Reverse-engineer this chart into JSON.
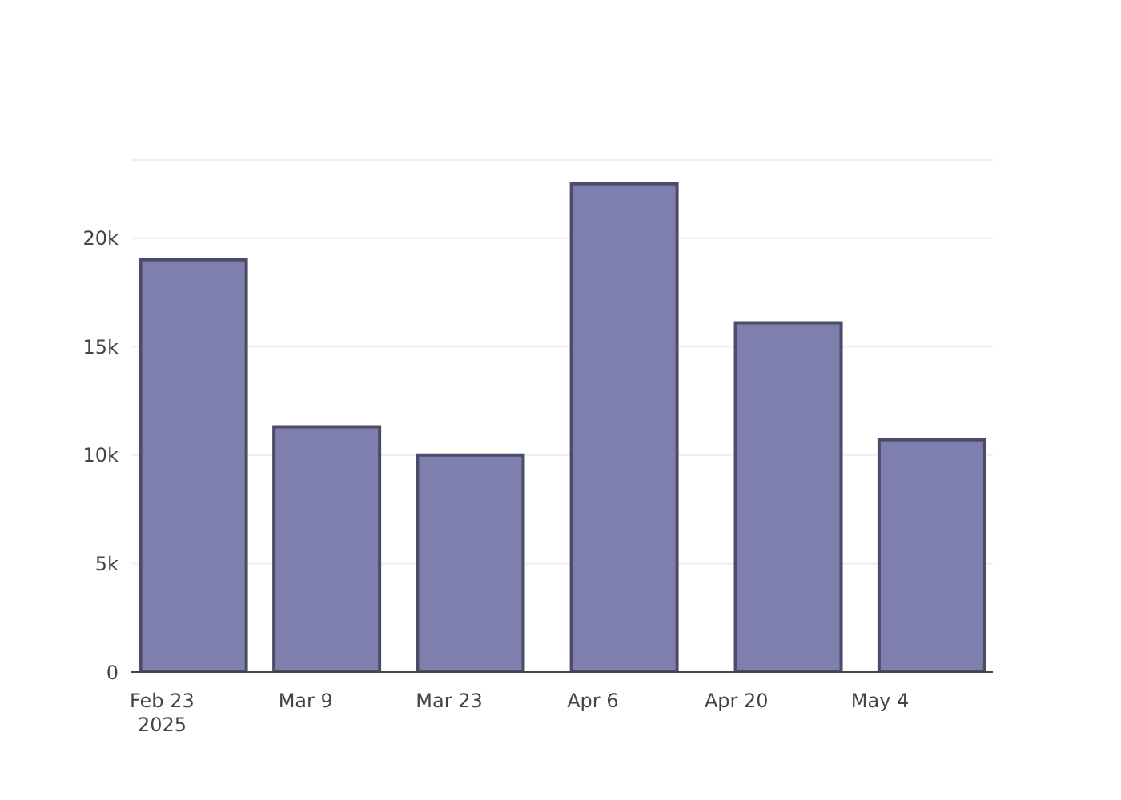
{
  "chart_data": {
    "type": "bar",
    "x": [
      "2025-02-26",
      "2025-03-11",
      "2025-03-25",
      "2025-04-09",
      "2025-04-25",
      "2025-05-09"
    ],
    "values": [
      19000,
      11300,
      10000,
      22500,
      16100,
      10700
    ],
    "color": "#7f7fae",
    "xlim": [
      "2025-02-20",
      "2025-05-15"
    ],
    "xticks": [
      {
        "value": "2025-02-23",
        "label": "Feb 23\n2025"
      },
      {
        "value": "2025-03-09",
        "label": "Mar 9"
      },
      {
        "value": "2025-03-23",
        "label": "Mar 23"
      },
      {
        "value": "2025-04-06",
        "label": "Apr 6"
      },
      {
        "value": "2025-04-20",
        "label": "Apr 20"
      },
      {
        "value": "2025-05-04",
        "label": "May 4"
      }
    ],
    "ylim": [
      0,
      23600
    ],
    "yticks": [
      0,
      {
        "value": 5000,
        "label": "5k"
      },
      {
        "value": 10000,
        "label": "10k"
      },
      {
        "value": 15000,
        "label": "15k"
      },
      {
        "value": 20000,
        "label": "20k"
      }
    ],
    "grid": "y",
    "legend": false
  }
}
